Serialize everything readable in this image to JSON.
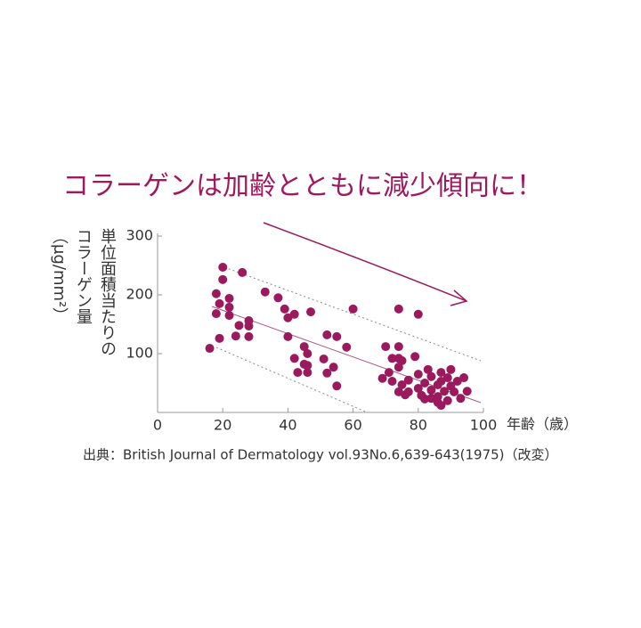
{
  "chart_data": {
    "type": "scatter",
    "title": "コラーゲンは加齢とともに減少傾向に！",
    "y_label": "単位面積当たりのコラーゲン量（μg/mm²）",
    "x_label": "年齢（歳）",
    "source": "出典：British Journal of Dermatology vol.93No.6,639-643(1975)（改変）",
    "xlim": [
      0,
      100
    ],
    "ylim": [
      0,
      300
    ],
    "xticks": [
      0,
      20,
      40,
      60,
      80,
      100
    ],
    "yticks": [
      100,
      200,
      300
    ],
    "color": "#9b1a5e",
    "x": [
      16,
      19,
      18,
      18,
      19,
      20,
      20,
      22,
      22,
      22,
      24,
      25,
      26,
      28,
      28,
      28,
      33,
      37,
      39,
      40,
      42,
      47,
      40,
      42,
      45,
      43,
      45,
      46,
      46,
      46,
      52,
      55,
      58,
      51,
      54,
      52,
      55,
      60,
      70,
      74,
      74,
      80,
      72,
      74,
      79,
      71,
      74,
      75,
      69,
      72,
      75,
      74,
      76,
      77,
      80,
      80,
      81,
      82,
      83,
      84,
      84,
      86,
      86,
      87,
      87,
      88,
      89,
      90,
      90,
      91,
      92,
      93,
      94,
      95,
      86,
      87,
      89,
      84,
      82,
      77,
      81
    ],
    "values": [
      109,
      126,
      168,
      202,
      185,
      247,
      226,
      179,
      194,
      165,
      130,
      148,
      238,
      147,
      156,
      129,
      205,
      195,
      176,
      161,
      167,
      171,
      129,
      92,
      112,
      68,
      82,
      68,
      80,
      100,
      132,
      129,
      111,
      91,
      77,
      67,
      45,
      176,
      112,
      112,
      176,
      167,
      92,
      92,
      95,
      68,
      77,
      88,
      58,
      53,
      47,
      35,
      30,
      35,
      65,
      41,
      29,
      50,
      73,
      61,
      38,
      47,
      27,
      68,
      53,
      36,
      59,
      45,
      73,
      35,
      53,
      24,
      59,
      36,
      17,
      12,
      20,
      24,
      23,
      55,
      29
    ]
  }
}
